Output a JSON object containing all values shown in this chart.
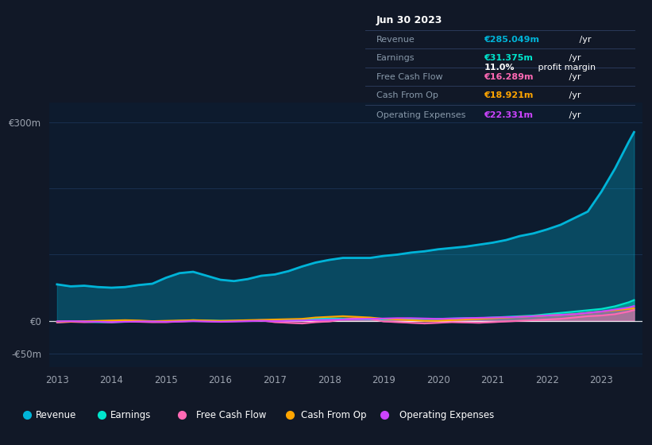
{
  "bg_color": "#111827",
  "plot_bg_color": "#0d1b2e",
  "grid_color": "#1e3a5f",
  "text_color": "#9ca3af",
  "years": [
    2013.0,
    2013.25,
    2013.5,
    2013.75,
    2014.0,
    2014.25,
    2014.5,
    2014.75,
    2015.0,
    2015.25,
    2015.5,
    2015.75,
    2016.0,
    2016.25,
    2016.5,
    2016.75,
    2017.0,
    2017.25,
    2017.5,
    2017.75,
    2018.0,
    2018.25,
    2018.5,
    2018.75,
    2019.0,
    2019.25,
    2019.5,
    2019.75,
    2020.0,
    2020.25,
    2020.5,
    2020.75,
    2021.0,
    2021.25,
    2021.5,
    2021.75,
    2022.0,
    2022.25,
    2022.5,
    2022.75,
    2023.0,
    2023.25,
    2023.5,
    2023.6
  ],
  "revenue": [
    55,
    52,
    53,
    51,
    50,
    51,
    54,
    56,
    65,
    72,
    74,
    68,
    62,
    60,
    63,
    68,
    70,
    75,
    82,
    88,
    92,
    95,
    95,
    95,
    98,
    100,
    103,
    105,
    108,
    110,
    112,
    115,
    118,
    122,
    128,
    132,
    138,
    145,
    155,
    165,
    195,
    230,
    270,
    285
  ],
  "earnings": [
    -2,
    -1,
    -1.5,
    -2,
    -2,
    -1.5,
    -1,
    -1.5,
    -1,
    0,
    1,
    0.5,
    0,
    0,
    0.5,
    1,
    0.5,
    1,
    2,
    3,
    3.5,
    3,
    2.5,
    2,
    2,
    2.5,
    3,
    3,
    3,
    3.5,
    4,
    4,
    5,
    6,
    7,
    8,
    10,
    12,
    14,
    16,
    18,
    22,
    28,
    31.375
  ],
  "free_cash_flow": [
    -2.5,
    -1.5,
    -2,
    -1.5,
    -2,
    -1,
    -1.5,
    -2,
    -2,
    -1,
    0,
    -0.5,
    -1,
    -0.5,
    0,
    0.5,
    -2,
    -3,
    -4,
    -2,
    -1,
    2,
    4,
    3,
    -1,
    -2,
    -3,
    -4,
    -3,
    -2,
    -2.5,
    -3,
    -2,
    -1,
    0,
    1,
    2,
    3,
    5,
    7,
    8,
    10,
    14,
    16.289
  ],
  "cash_from_op": [
    -1.5,
    -1,
    -0.5,
    0,
    0.5,
    1,
    0.5,
    -0.5,
    0,
    0.5,
    1,
    0.5,
    0,
    0.5,
    1,
    1.5,
    2,
    2.5,
    3,
    5,
    6,
    7,
    6,
    5,
    3,
    2,
    1,
    0,
    0,
    1,
    2,
    3,
    4,
    5,
    6,
    7,
    8,
    9,
    10,
    12,
    14,
    16,
    18,
    18.921
  ],
  "operating_expenses": [
    -1,
    -0.5,
    -1,
    -1.5,
    -2,
    -1.5,
    -1,
    -1,
    -1.5,
    -1,
    -0.5,
    -1,
    -1.5,
    -1,
    -0.5,
    0,
    -0.5,
    0,
    0.5,
    1,
    1.5,
    2,
    2.5,
    3,
    3.5,
    4,
    4,
    3.5,
    3,
    3.5,
    4,
    4.5,
    5,
    5.5,
    6,
    7,
    8,
    9,
    10,
    12,
    14,
    17,
    20,
    22.331
  ],
  "revenue_color": "#00b4d8",
  "earnings_color": "#00e5cc",
  "free_cash_flow_color": "#ff69b4",
  "cash_from_op_color": "#ffa500",
  "operating_expenses_color": "#cc44ff",
  "xlim_left": 2012.85,
  "xlim_right": 2023.75,
  "ylim_bottom": -70,
  "ylim_top": 330,
  "yticks": [
    300,
    0,
    -50
  ],
  "ytick_labels": [
    "€300m",
    "€0",
    "-€50m"
  ],
  "xticks": [
    2013,
    2014,
    2015,
    2016,
    2017,
    2018,
    2019,
    2020,
    2021,
    2022,
    2023
  ],
  "hgrid_positions": [
    300,
    200,
    100,
    0,
    -50
  ],
  "info_box": {
    "date": "Jun 30 2023",
    "revenue_label": "Revenue",
    "revenue_value": "€285.049m",
    "earnings_label": "Earnings",
    "earnings_value": "€31.375m",
    "margin_text": "11.0%",
    "margin_suffix": " profit margin",
    "fcf_label": "Free Cash Flow",
    "fcf_value": "€16.289m",
    "cfop_label": "Cash From Op",
    "cfop_value": "€18.921m",
    "opex_label": "Operating Expenses",
    "opex_value": "€22.331m"
  },
  "legend_items": [
    {
      "label": "Revenue",
      "color": "#00b4d8"
    },
    {
      "label": "Earnings",
      "color": "#00e5cc"
    },
    {
      "label": "Free Cash Flow",
      "color": "#ff69b4"
    },
    {
      "label": "Cash From Op",
      "color": "#ffa500"
    },
    {
      "label": "Operating Expenses",
      "color": "#cc44ff"
    }
  ]
}
